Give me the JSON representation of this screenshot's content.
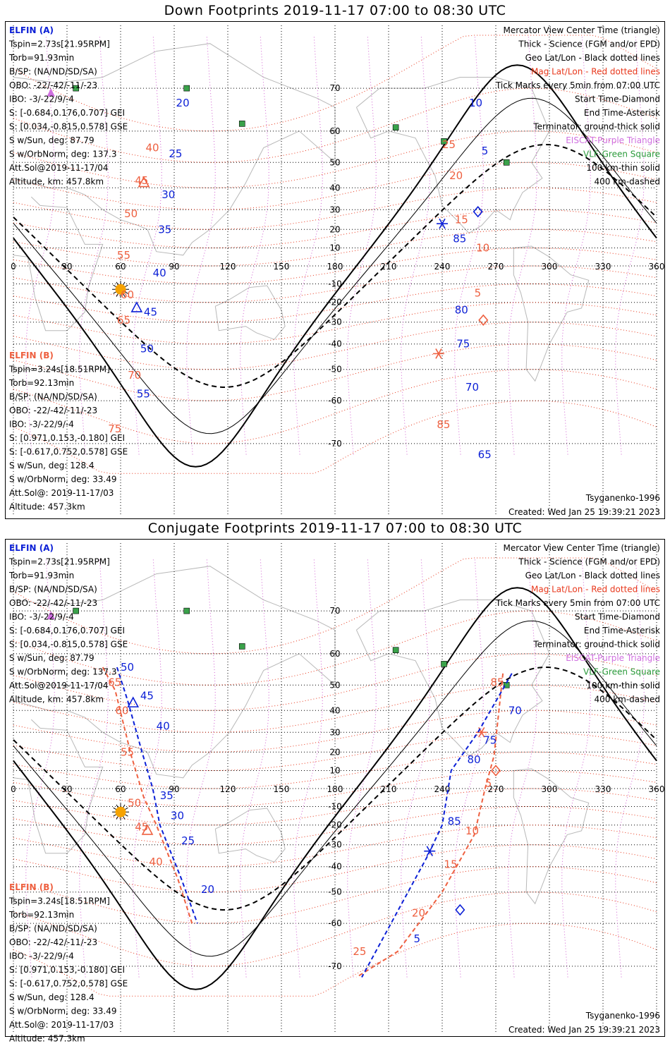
{
  "panels": [
    {
      "id": "down",
      "title": "Down Footprints 2019-11-17 07:00 to 08:30 UTC",
      "elfin_a": {
        "name": "ELFIN (A)",
        "lines": [
          "Tspin=2.73s[21.95RPM]",
          "Torb=91.93min",
          "B/SP: (NA/ND/SD/SA)",
          "OBO: -22/-42/-11/-23",
          "IBO: -3/-22/9/-4",
          "S: [-0.684,0.176,0.707] GEI",
          "S: [0.034,-0.815,0.578] GSE",
          "S w/Sun, deg: 87.79",
          "S w/OrbNorm, deg: 137.3",
          "Att.Sol@2019-11-17/04",
          "Altitude, km: 457.8km"
        ]
      },
      "elfin_b": {
        "name": "ELFIN (B)",
        "lines": [
          "Tspin=3.24s[18.51RPM]",
          "Torb=92.13min",
          "B/SP: (NA/ND/SD/SA)",
          "OBO: -22/-42/-11/-23",
          "IBO: -3/-22/9/-4",
          "S: [0.971,0.153,-0.180] GEI",
          "S: [-0.617,0.752,0.578] GSE",
          "S w/Sun, deg: 128.4",
          "S w/OrbNorm, deg: 33.49",
          "Att.Sol@: 2019-11-17/03",
          "Altitude: 457.3km"
        ]
      },
      "legend": [
        {
          "text": "Mercator View Center Time (triangle)",
          "color": "#000000"
        },
        {
          "text": "Thick - Science (FGM and/or EPD)",
          "color": "#000000"
        },
        {
          "text": "Geo Lat/Lon - Black dotted lines",
          "color": "#000000"
        },
        {
          "text": "Mag Lat/Lon - Red dotted lines",
          "color": "#e8381c"
        },
        {
          "text": "Tick Marks every 5min from 07:00 UTC",
          "color": "#000000"
        },
        {
          "text": "Start Time-Diamond",
          "color": "#000000"
        },
        {
          "text": "End Time-Asterisk",
          "color": "#000000"
        },
        {
          "text": "Terminator: ground-thick solid",
          "color": "#000000"
        },
        {
          "text": "EISCAT-Purple Triangle",
          "color": "#d070e0"
        },
        {
          "text": "VLF-Green Square",
          "color": "#2a9a3a"
        },
        {
          "text": "100 km-thin solid",
          "color": "#000000"
        },
        {
          "text": "400 km-dashed",
          "color": "#000000"
        }
      ],
      "model": "Tsyganenko-1996",
      "created": "Created: Wed Jan 25 19:39:21 2023",
      "blue_track_1": {
        "pts": [
          [
            97,
            75
          ],
          [
            88,
            135
          ],
          [
            84,
            210
          ],
          [
            78,
            330
          ],
          [
            77,
            366
          ],
          [
            73,
            471
          ],
          [
            68,
            660
          ]
        ],
        "dash": false,
        "ticks": [
          {
            "t": "20",
            "lon": 91,
            "lat": 67
          },
          {
            "t": "25",
            "lon": 87,
            "lat": 53
          },
          {
            "t": "30",
            "lon": 83,
            "lat": 37
          },
          {
            "t": "35",
            "lon": 81,
            "lat": 20
          },
          {
            "t": "40",
            "lon": 78,
            "lat": -4
          },
          {
            "t": "45",
            "lon": 73,
            "lat": -25
          },
          {
            "t": "50",
            "lon": 71,
            "lat": -42
          },
          {
            "t": "55",
            "lon": 69,
            "lat": -58
          }
        ],
        "start": null,
        "end": null,
        "center": [
          69,
          -23
        ]
      },
      "orange_track_1": {
        "pts": [
          [
            92,
            75
          ],
          [
            84,
            135
          ],
          [
            80,
            210
          ],
          [
            73,
            330
          ],
          [
            72,
            368
          ],
          [
            68,
            471
          ],
          [
            62,
            660
          ]
        ],
        "dash": false,
        "ticks": [
          {
            "t": "40",
            "lon": 74,
            "lat": 55
          },
          {
            "t": "45",
            "lon": 68,
            "lat": 43
          },
          {
            "t": "50",
            "lon": 62,
            "lat": 28
          },
          {
            "t": "55",
            "lon": 58,
            "lat": 6
          },
          {
            "t": "60",
            "lon": 60,
            "lat": -16
          },
          {
            "t": "65",
            "lon": 58,
            "lat": -29
          },
          {
            "t": "70",
            "lon": 64,
            "lat": -52
          },
          {
            "t": "75",
            "lon": 53,
            "lat": -67
          }
        ],
        "start": null,
        "end": null,
        "center": [
          73,
          42
        ]
      },
      "blue_track_2": {
        "pts": [
          [
            246,
            75
          ],
          [
            249,
            135
          ],
          [
            258,
            270
          ],
          [
            245,
            330
          ],
          [
            241,
            385
          ],
          [
            241,
            430
          ],
          [
            254,
            660
          ]
        ],
        "dash": false,
        "ticks": [
          {
            "t": "10",
            "lon": 255,
            "lat": 67
          },
          {
            "t": "5",
            "lon": 262,
            "lat": 54
          },
          {
            "t": "85",
            "lon": 246,
            "lat": 15
          },
          {
            "t": "80",
            "lon": 247,
            "lat": -24
          },
          {
            "t": "75",
            "lon": 248,
            "lat": -40
          },
          {
            "t": "70",
            "lon": 253,
            "lat": -56
          },
          {
            "t": "65",
            "lon": 260,
            "lat": -72
          }
        ],
        "start": [
          260,
          29
        ],
        "end": [
          240,
          23
        ],
        "center": null
      },
      "orange_track_2": {
        "pts": [
          [
            240,
            75
          ],
          [
            245,
            135
          ],
          [
            250,
            210
          ],
          [
            253,
            310
          ],
          [
            256,
            372
          ],
          [
            262,
            460
          ],
          [
            259,
            500
          ],
          [
            248,
            560
          ],
          [
            250,
            660
          ]
        ],
        "dash": false,
        "ticks": [
          {
            "t": "25",
            "lon": 240,
            "lat": 56
          },
          {
            "t": "20",
            "lon": 244,
            "lat": 45
          },
          {
            "t": "15",
            "lon": 247,
            "lat": 25
          },
          {
            "t": "10",
            "lon": 259,
            "lat": 10
          },
          {
            "t": "5",
            "lon": 258,
            "lat": -15
          },
          {
            "t": "85",
            "lon": 237,
            "lat": -66
          }
        ],
        "start": [
          263,
          -29
        ],
        "end": [
          238,
          -44
        ],
        "center": null
      }
    },
    {
      "id": "conj",
      "title": "Conjugate Footprints 2019-11-17 07:00 to 08:30 UTC",
      "elfin_a": {
        "name": "ELFIN (A)",
        "lines": [
          "Tspin=2.73s[21.95RPM]",
          "Torb=91.93min",
          "B/SP: (NA/ND/SD/SA)",
          "OBO: -22/-42/-11/-23",
          "IBO: -3/-22/9/-4",
          "S: [-0.684,0.176,0.707] GEI",
          "S: [0.034,-0.815,0.578] GSE",
          "S w/Sun, deg: 87.79",
          "S w/OrbNorm, deg: 137.3",
          "Att.Sol@2019-11-17/04",
          "Altitude, km: 457.8km"
        ]
      },
      "elfin_b": {
        "name": "ELFIN (B)",
        "lines": [
          "Tspin=3.24s[18.51RPM]",
          "Torb=92.13min",
          "B/SP: (NA/ND/SD/SA)",
          "OBO: -22/-42/-11/-23",
          "IBO: -3/-22/9/-4",
          "S: [0.971,0.153,-0.180] GEI",
          "S: [-0.617,0.752,0.578] GSE",
          "S w/Sun, deg: 128.4",
          "S w/OrbNorm, deg: 33.49",
          "Att.Sol@: 2019-11-17/03",
          "Altitude: 457.3km"
        ]
      },
      "legend": [
        {
          "text": "Mercator View Center Time (triangle)",
          "color": "#000000"
        },
        {
          "text": "Thick - Science (FGM and/or EPD)",
          "color": "#000000"
        },
        {
          "text": "Geo Lat/Lon - Black dotted lines",
          "color": "#000000"
        },
        {
          "text": "Mag Lat/Lon - Red dotted lines",
          "color": "#e8381c"
        },
        {
          "text": "Tick Marks every 5min from 07:00 UTC",
          "color": "#000000"
        },
        {
          "text": "Start Time-Diamond",
          "color": "#000000"
        },
        {
          "text": "End Time-Asterisk",
          "color": "#000000"
        },
        {
          "text": "Terminator: ground-thick solid",
          "color": "#000000"
        },
        {
          "text": "EISCAT-Purple Triangle",
          "color": "#d070e0"
        },
        {
          "text": "VLF-Green Square",
          "color": "#2a9a3a"
        },
        {
          "text": "100 km-thin solid",
          "color": "#000000"
        },
        {
          "text": "400 km-dashed",
          "color": "#000000"
        }
      ],
      "model": "Tsyganenko-1996",
      "created": "Created: Wed Jan 25 19:39:21 2023",
      "blue_track_1": {
        "pts": [
          [
            58,
            56
          ],
          [
            64,
            44
          ],
          [
            72,
            20
          ],
          [
            78,
            0
          ],
          [
            82,
            -20
          ],
          [
            94,
            -45
          ],
          [
            103,
            -60
          ]
        ],
        "dash": true,
        "ticks": [
          {
            "t": "50",
            "lon": 60,
            "lat": 56
          },
          {
            "t": "45",
            "lon": 71,
            "lat": 46
          },
          {
            "t": "40",
            "lon": 80,
            "lat": 33
          },
          {
            "t": "35",
            "lon": 82,
            "lat": -4
          },
          {
            "t": "30",
            "lon": 88,
            "lat": -15
          },
          {
            "t": "25",
            "lon": 94,
            "lat": -28
          },
          {
            "t": "20",
            "lon": 105,
            "lat": -49
          }
        ],
        "start": null,
        "end": null,
        "center": [
          67,
          43
        ]
      },
      "orange_track_1": {
        "pts": [
          [
            50,
            56
          ],
          [
            57,
            48
          ],
          [
            66,
            18
          ],
          [
            73,
            -5
          ],
          [
            80,
            -20
          ],
          [
            92,
            -45
          ],
          [
            100,
            -60
          ]
        ],
        "dash": true,
        "ticks": [
          {
            "t": "65",
            "lon": 53,
            "lat": 51
          },
          {
            "t": "60",
            "lon": 57,
            "lat": 40
          },
          {
            "t": "55",
            "lon": 60,
            "lat": 20
          },
          {
            "t": "50",
            "lon": 64,
            "lat": -8
          },
          {
            "t": "45",
            "lon": 68,
            "lat": -21
          },
          {
            "t": "40",
            "lon": 76,
            "lat": -38
          }
        ],
        "start": null,
        "end": null,
        "center": [
          75,
          -23
        ]
      },
      "blue_track_2": {
        "pts": [
          [
            279,
            54
          ],
          [
            260,
            30
          ],
          [
            245,
            10
          ],
          [
            240,
            -20
          ],
          [
            232,
            -35
          ],
          [
            195,
            -72
          ]
        ],
        "dash": true,
        "ticks": [
          {
            "t": "70",
            "lon": 277,
            "lat": 40
          },
          {
            "t": "75",
            "lon": 263,
            "lat": 26
          },
          {
            "t": "80",
            "lon": 254,
            "lat": 16
          },
          {
            "t": "85",
            "lon": 243,
            "lat": -18
          },
          {
            "t": "5",
            "lon": 224,
            "lat": -64
          }
        ],
        "start": [
          250,
          -56
        ],
        "end": [
          233,
          -33
        ],
        "center": null
      },
      "orange_track_2": {
        "pts": [
          [
            274,
            54
          ],
          [
            269,
            18
          ],
          [
            264,
            0
          ],
          [
            258,
            -25
          ],
          [
            240,
            -50
          ],
          [
            215,
            -67
          ],
          [
            192,
            -72
          ]
        ],
        "dash": true,
        "ticks": [
          {
            "t": "85",
            "lon": 267,
            "lat": 51
          },
          {
            "t": "5",
            "lon": 264,
            "lat": 3
          },
          {
            "t": "10",
            "lon": 253,
            "lat": -23
          },
          {
            "t": "15",
            "lon": 241,
            "lat": -39
          },
          {
            "t": "20",
            "lon": 223,
            "lat": -57
          },
          {
            "t": "25",
            "lon": 190,
            "lat": -67
          }
        ],
        "start": [
          270,
          10
        ],
        "end": [
          262,
          30
        ],
        "center": null
      }
    }
  ]
}
